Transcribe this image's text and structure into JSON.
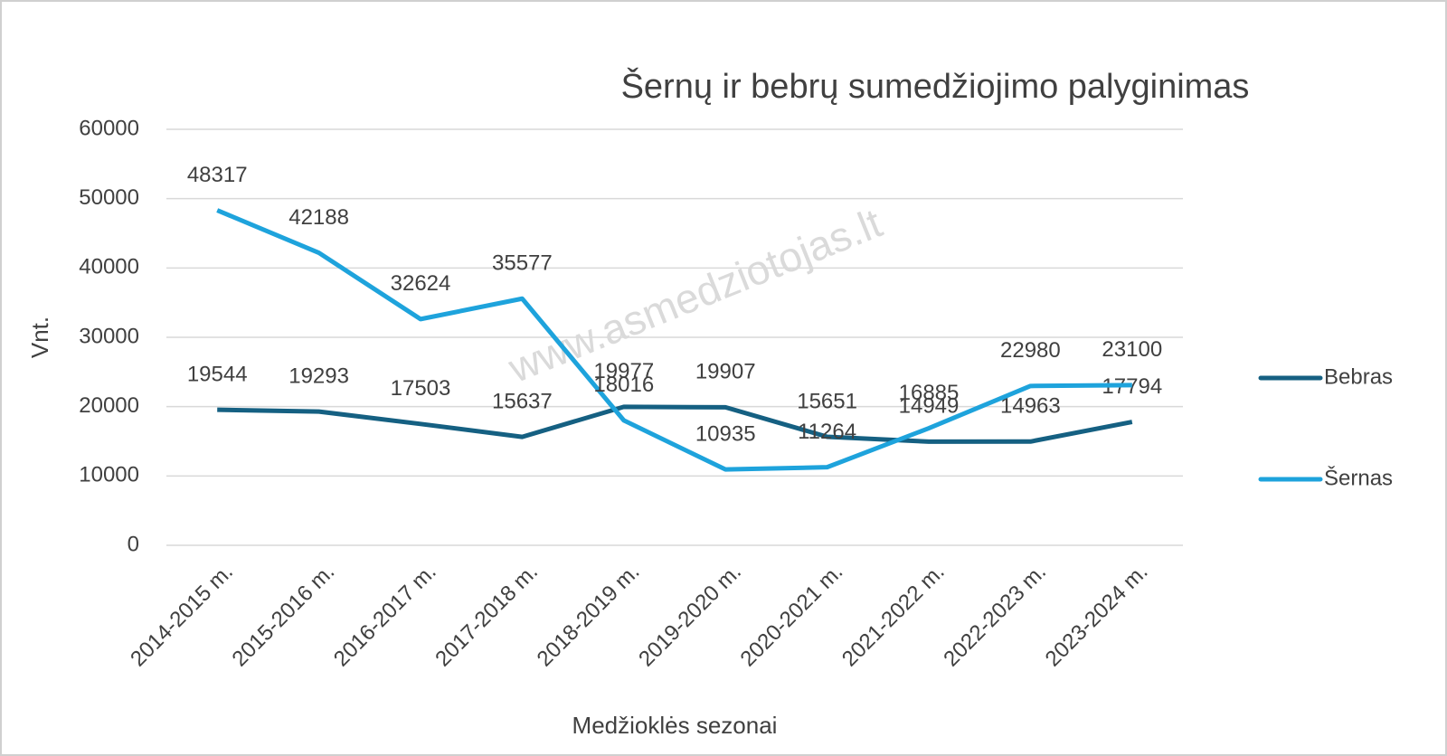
{
  "chart_data": {
    "type": "line",
    "title": "Šernų ir bebrų sumedžiojimo palyginimas",
    "watermark": "www.asmedziotojas.lt",
    "x_label": "Medžioklės sezonai",
    "y_label": "Vnt.",
    "categories": [
      "2014-2015 m.",
      "2015-2016 m.",
      "2016-2017 m.",
      "2017-2018 m.",
      "2018-2019 m.",
      "2019-2020 m.",
      "2020-2021 m.",
      "2021-2022 m.",
      "2022-2023 m.",
      "2023-2024 m."
    ],
    "series": [
      {
        "name": "Bebras",
        "color": "#156082",
        "values": [
          19544,
          19293,
          17503,
          15637,
          19977,
          19907,
          15651,
          14949,
          14963,
          17794
        ]
      },
      {
        "name": "Šernas",
        "color": "#1ea3dc",
        "values": [
          48317,
          42188,
          32624,
          35577,
          18016,
          10935,
          11264,
          16885,
          22980,
          23100
        ]
      }
    ],
    "ylim": [
      0,
      60000
    ],
    "yticks": [
      0,
      10000,
      20000,
      30000,
      40000,
      50000,
      60000
    ],
    "grid": true,
    "legend": "right"
  }
}
